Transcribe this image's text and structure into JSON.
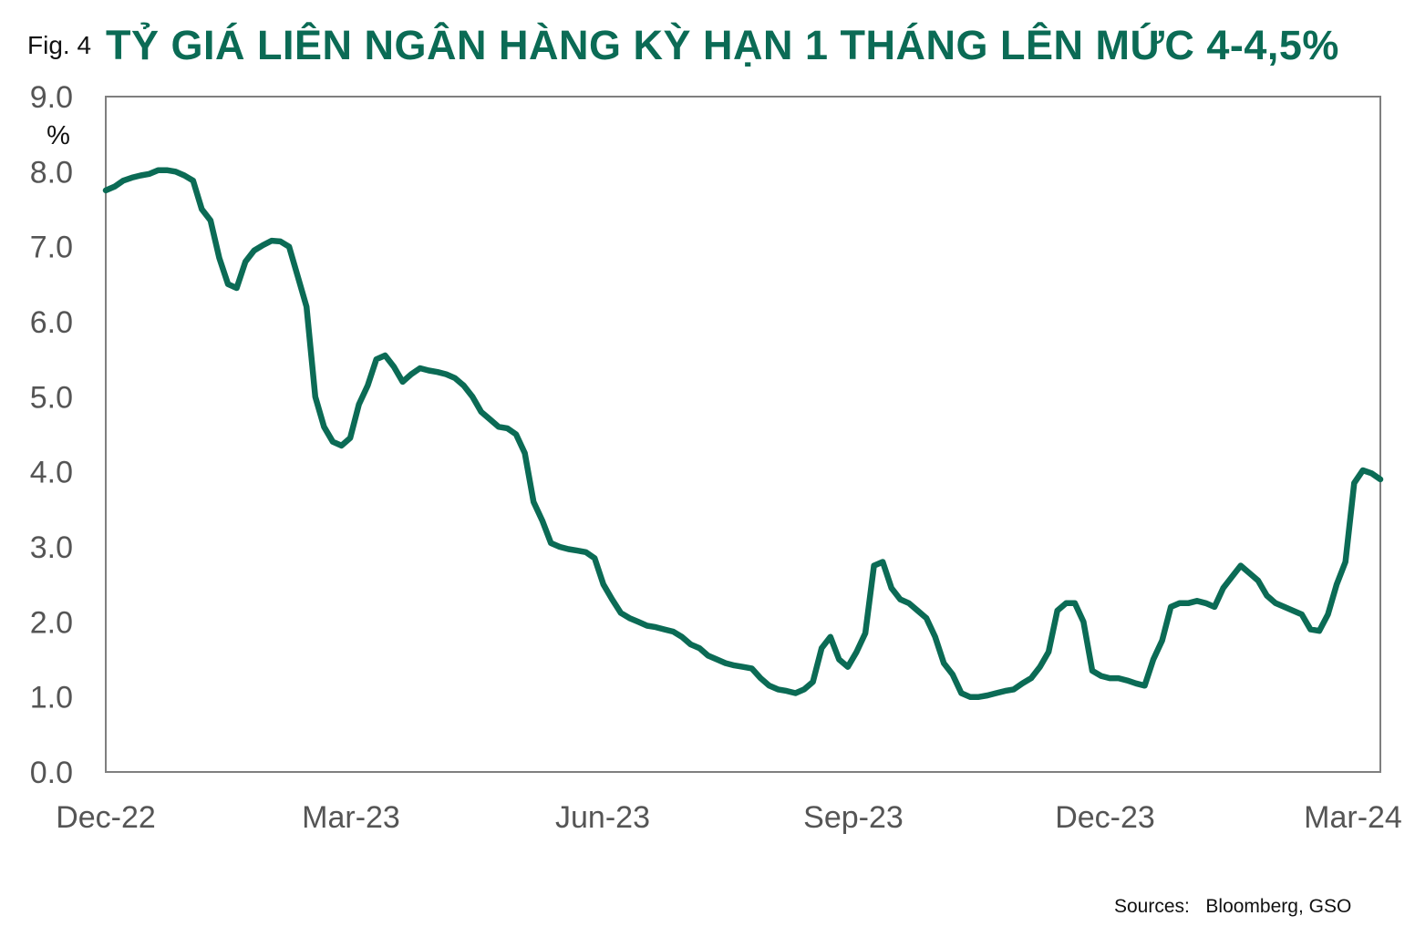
{
  "figure": {
    "label": "Fig. 4",
    "title": "TỶ GIÁ LIÊN NGÂN HÀNG KỲ HẠN 1 THÁNG LÊN MỨC 4-4,5%",
    "sources_label": "Sources:",
    "sources_value": "Bloomberg, GSO"
  },
  "colors": {
    "line": "#0b6b55",
    "title": "#0b6b55",
    "axis_text": "#555555",
    "frame": "#7f7f7f"
  },
  "chart_data": {
    "type": "line",
    "title": "TỶ GIÁ LIÊN NGÂN HÀNG KỲ HẠN 1 THÁNG LÊN MỨC 4-4,5%",
    "ylabel": "%",
    "xlabel": "",
    "ylim": [
      0,
      9
    ],
    "yticks": [
      "0.0",
      "1.0",
      "2.0",
      "3.0",
      "4.0",
      "5.0",
      "6.0",
      "7.0",
      "8.0",
      "9.0"
    ],
    "xticks": [
      "Dec-22",
      "Mar-23",
      "Jun-23",
      "Sep-23",
      "Dec-23",
      "Mar-24"
    ],
    "grid": false,
    "series": [
      {
        "values": [
          7.75,
          7.8,
          7.88,
          7.92,
          7.95,
          7.97,
          8.02,
          8.02,
          8.0,
          7.95,
          7.88,
          7.5,
          7.35,
          6.85,
          6.5,
          6.45,
          6.8,
          6.95,
          7.02,
          7.08,
          7.07,
          7.0,
          6.6,
          6.2,
          5.0,
          4.6,
          4.4,
          4.35,
          4.45,
          4.9,
          5.15,
          5.5,
          5.55,
          5.4,
          5.2,
          5.3,
          5.38,
          5.35,
          5.33,
          5.3,
          5.25,
          5.15,
          5.0,
          4.8,
          4.7,
          4.6,
          4.58,
          4.5,
          4.25,
          3.6,
          3.35,
          3.05,
          3.0,
          2.97,
          2.95,
          2.93,
          2.85,
          2.5,
          2.3,
          2.12,
          2.05,
          2.0,
          1.95,
          1.93,
          1.9,
          1.87,
          1.8,
          1.7,
          1.65,
          1.55,
          1.5,
          1.45,
          1.42,
          1.4,
          1.38,
          1.25,
          1.15,
          1.1,
          1.08,
          1.05,
          1.1,
          1.2,
          1.65,
          1.8,
          1.5,
          1.4,
          1.6,
          1.85,
          2.75,
          2.8,
          2.45,
          2.3,
          2.25,
          2.15,
          2.05,
          1.8,
          1.45,
          1.3,
          1.05,
          1.0,
          1.0,
          1.02,
          1.05,
          1.08,
          1.1,
          1.18,
          1.25,
          1.4,
          1.6,
          2.15,
          2.25,
          2.25,
          2.0,
          1.35,
          1.28,
          1.25,
          1.25,
          1.22,
          1.18,
          1.15,
          1.5,
          1.75,
          2.2,
          2.25,
          2.25,
          2.28,
          2.25,
          2.2,
          2.45,
          2.6,
          2.75,
          2.65,
          2.55,
          2.35,
          2.25,
          2.2,
          2.15,
          2.1,
          1.9,
          1.88,
          2.1,
          2.5,
          2.8,
          3.85,
          4.02,
          3.98,
          3.9
        ]
      }
    ]
  }
}
